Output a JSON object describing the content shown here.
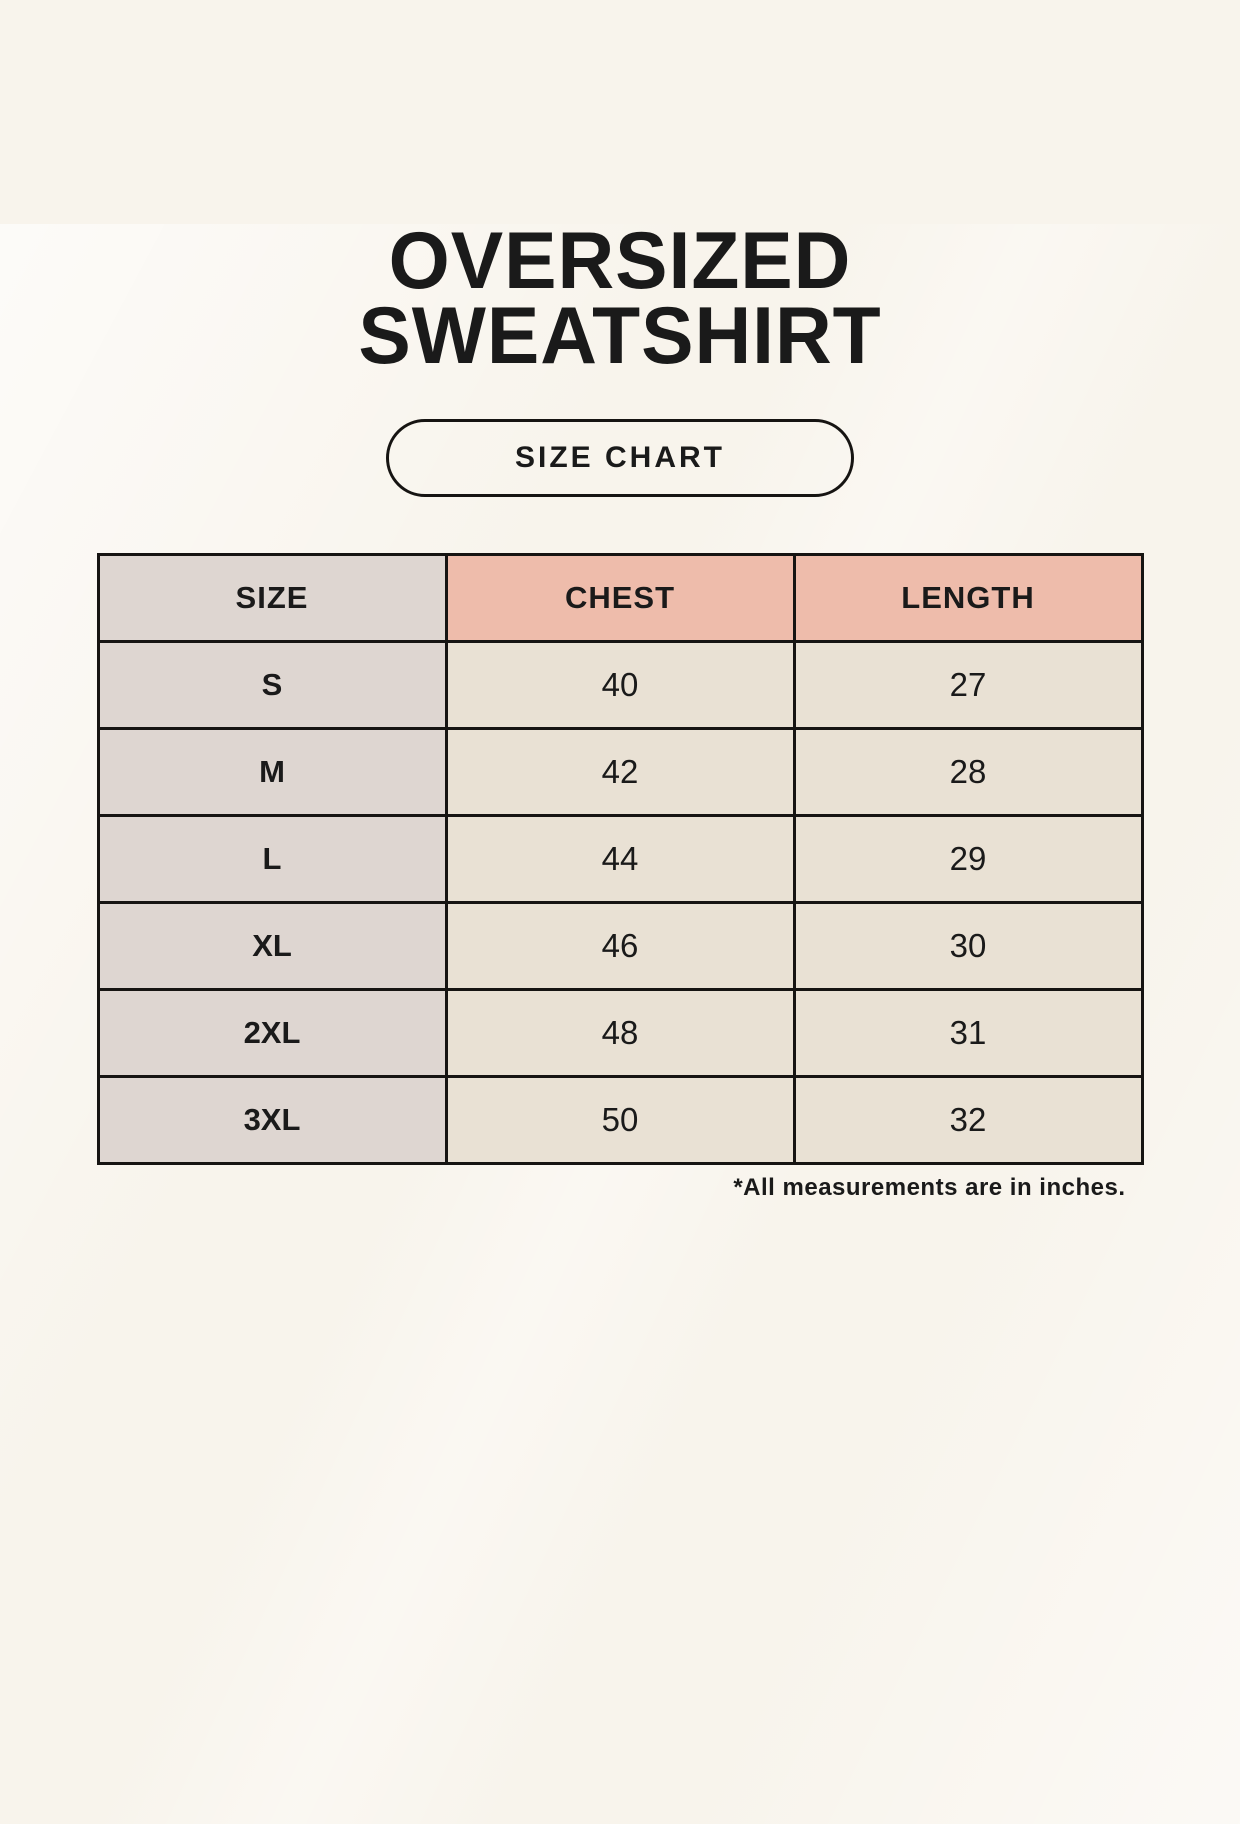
{
  "page": {
    "title_line1": "OVERSIZED",
    "title_line2": "SWEATSHIRT",
    "button_label": "SIZE CHART",
    "footnote": "*All measurements are in inches."
  },
  "table": {
    "headers": {
      "size": "SIZE",
      "chest": "CHEST",
      "length": "LENGTH"
    },
    "rows": [
      {
        "size": "S",
        "chest": "40",
        "length": "27"
      },
      {
        "size": "M",
        "chest": "42",
        "length": "28"
      },
      {
        "size": "L",
        "chest": "44",
        "length": "29"
      },
      {
        "size": "XL",
        "chest": "46",
        "length": "30"
      },
      {
        "size": "2XL",
        "chest": "48",
        "length": "31"
      },
      {
        "size": "3XL",
        "chest": "50",
        "length": "32"
      }
    ]
  },
  "colors": {
    "background": "#f8f4ec",
    "header_size_bg": "#ded6d1",
    "header_accent_bg": "#eebcab",
    "cell_bg": "#e9e1d4",
    "border": "#161412",
    "text": "#1a1a1a"
  }
}
